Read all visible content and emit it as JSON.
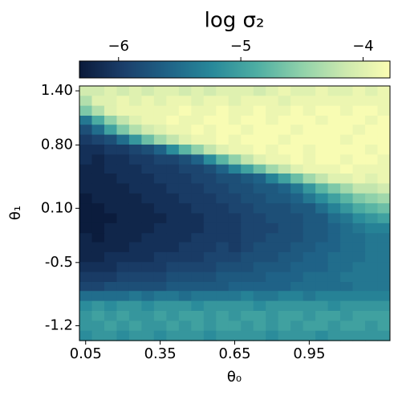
{
  "chart_data": {
    "type": "heatmap",
    "title": "log σ₂",
    "x_label": "θ₀",
    "y_label": "θ₁",
    "x": [
      0.05,
      0.1,
      0.15,
      0.2,
      0.25,
      0.3,
      0.35,
      0.4,
      0.45,
      0.5,
      0.55,
      0.6,
      0.65,
      0.7,
      0.75,
      0.8,
      0.85,
      0.9,
      0.95,
      1.0,
      1.05,
      1.1,
      1.15,
      1.2,
      1.25
    ],
    "y": [
      1.4,
      1.29,
      1.18,
      1.07,
      0.97,
      0.86,
      0.75,
      0.64,
      0.53,
      0.43,
      0.32,
      0.21,
      0.1,
      -0.01,
      -0.12,
      -0.23,
      -0.33,
      -0.44,
      -0.55,
      -0.66,
      -0.77,
      -0.87,
      -0.98,
      -1.09,
      -1.2,
      -1.31
    ],
    "xlim": [
      0.025,
      1.275
    ],
    "ylim": [
      1.454,
      -1.364
    ],
    "xticks": [
      0.05,
      0.35,
      0.65,
      0.95
    ],
    "yticks": [
      {
        "value": 1.4,
        "label": "1.40"
      },
      {
        "value": 0.8,
        "label": "0.80"
      },
      {
        "value": 0.1,
        "label": "0.10"
      },
      -0.5,
      -1.2
    ],
    "clim": [
      -6.32,
      -3.78
    ],
    "cticks": [
      {
        "value": -6,
        "label": "−6"
      },
      {
        "value": -5,
        "label": "−5"
      },
      {
        "value": -4,
        "label": "−4"
      }
    ],
    "colormap": [
      "#0a1a3a",
      "#1b3f6b",
      "#1f6387",
      "#28899a",
      "#4eaea3",
      "#8fd1aa",
      "#cde9ae",
      "#fbfdb3"
    ],
    "values": [
      [
        -4.1,
        -4.1,
        -4.0,
        -4.1,
        -4.0,
        -4.1,
        -4.0,
        -4.0,
        -4.1,
        -4.0,
        -4.1,
        -4.0,
        -4.0,
        -4.0,
        -4.1,
        -4.0,
        -3.9,
        -4.0,
        -4.0,
        -3.9,
        -4.0,
        -4.0,
        -3.9,
        -4.0,
        -3.9
      ],
      [
        -4.3,
        -4.0,
        -4.0,
        -3.9,
        -4.0,
        -3.9,
        -4.0,
        -3.9,
        -3.9,
        -4.0,
        -3.9,
        -3.9,
        -4.0,
        -3.9,
        -3.9,
        -3.9,
        -4.0,
        -3.9,
        -3.9,
        -3.9,
        -3.9,
        -3.9,
        -3.9,
        -3.9,
        -3.9
      ],
      [
        -4.6,
        -4.3,
        -4.0,
        -3.9,
        -3.9,
        -3.9,
        -3.9,
        -3.9,
        -3.8,
        -3.9,
        -3.9,
        -3.8,
        -3.9,
        -3.9,
        -3.8,
        -3.9,
        -3.9,
        -3.8,
        -3.9,
        -3.8,
        -3.8,
        -3.9,
        -3.8,
        -3.8,
        -3.9
      ],
      [
        -5.4,
        -4.9,
        -4.5,
        -4.2,
        -4.0,
        -3.9,
        -3.9,
        -3.8,
        -3.9,
        -3.9,
        -3.8,
        -3.8,
        -3.9,
        -3.8,
        -3.8,
        -3.9,
        -3.8,
        -3.8,
        -3.8,
        -3.9,
        -3.8,
        -3.8,
        -3.8,
        -3.9,
        -3.8
      ],
      [
        -5.8,
        -5.5,
        -5.0,
        -4.6,
        -4.3,
        -4.1,
        -4.0,
        -3.9,
        -3.9,
        -3.8,
        -3.9,
        -3.8,
        -3.8,
        -3.9,
        -3.8,
        -3.8,
        -3.8,
        -3.9,
        -3.8,
        -3.8,
        -3.8,
        -3.8,
        -3.9,
        -3.8,
        -3.8
      ],
      [
        -6.0,
        -5.9,
        -5.8,
        -5.5,
        -5.1,
        -4.7,
        -4.4,
        -4.2,
        -4.0,
        -3.9,
        -3.9,
        -3.8,
        -3.9,
        -3.8,
        -3.8,
        -3.8,
        -3.9,
        -3.8,
        -3.8,
        -3.8,
        -3.8,
        -3.9,
        -3.8,
        -3.8,
        -3.8
      ],
      [
        -6.1,
        -6.1,
        -6.0,
        -6.0,
        -5.9,
        -5.8,
        -5.6,
        -5.2,
        -4.8,
        -4.5,
        -4.2,
        -4.0,
        -3.9,
        -3.9,
        -3.8,
        -3.9,
        -3.8,
        -3.8,
        -3.9,
        -3.8,
        -3.8,
        -3.8,
        -3.8,
        -3.9,
        -3.8
      ],
      [
        -6.1,
        -6.2,
        -6.1,
        -6.1,
        -6.0,
        -6.0,
        -5.9,
        -5.9,
        -5.8,
        -5.6,
        -5.2,
        -4.8,
        -4.5,
        -4.2,
        -4.0,
        -3.9,
        -3.9,
        -3.8,
        -3.9,
        -3.8,
        -3.8,
        -3.9,
        -3.8,
        -3.8,
        -3.9
      ],
      [
        -6.2,
        -6.2,
        -6.1,
        -6.1,
        -6.1,
        -6.0,
        -6.0,
        -6.0,
        -5.9,
        -5.9,
        -5.8,
        -5.6,
        -5.3,
        -5.0,
        -4.7,
        -4.4,
        -4.2,
        -4.0,
        -3.9,
        -3.9,
        -3.9,
        -3.8,
        -3.9,
        -3.9,
        -3.9
      ],
      [
        -6.2,
        -6.2,
        -6.2,
        -6.1,
        -6.1,
        -6.1,
        -6.0,
        -6.0,
        -6.0,
        -5.9,
        -5.9,
        -5.8,
        -5.8,
        -5.7,
        -5.6,
        -5.3,
        -5.0,
        -4.7,
        -4.4,
        -4.2,
        -4.0,
        -4.0,
        -3.9,
        -4.0,
        -3.9
      ],
      [
        -6.2,
        -6.2,
        -6.2,
        -6.2,
        -6.1,
        -6.1,
        -6.1,
        -6.0,
        -6.0,
        -6.0,
        -5.9,
        -5.9,
        -5.8,
        -5.8,
        -5.7,
        -5.7,
        -5.6,
        -5.4,
        -5.1,
        -4.8,
        -4.6,
        -4.4,
        -4.2,
        -4.2,
        -4.1
      ],
      [
        -6.3,
        -6.2,
        -6.2,
        -6.2,
        -6.2,
        -6.1,
        -6.1,
        -6.1,
        -6.0,
        -6.0,
        -6.0,
        -5.9,
        -5.9,
        -5.8,
        -5.8,
        -5.7,
        -5.7,
        -5.6,
        -5.4,
        -5.2,
        -5.0,
        -4.8,
        -4.6,
        -4.5,
        -4.4
      ],
      [
        -6.3,
        -6.3,
        -6.2,
        -6.2,
        -6.2,
        -6.2,
        -6.1,
        -6.1,
        -6.1,
        -6.0,
        -6.0,
        -6.0,
        -5.9,
        -5.9,
        -5.8,
        -5.8,
        -5.8,
        -5.7,
        -5.7,
        -5.5,
        -5.3,
        -5.1,
        -4.9,
        -4.8,
        -4.7
      ],
      [
        -6.3,
        -6.3,
        -6.3,
        -6.2,
        -6.2,
        -6.2,
        -6.2,
        -6.1,
        -6.1,
        -6.1,
        -6.0,
        -6.0,
        -6.0,
        -5.9,
        -5.9,
        -5.8,
        -5.8,
        -5.8,
        -5.7,
        -5.7,
        -5.5,
        -5.4,
        -5.2,
        -5.1,
        -5.0
      ],
      [
        -6.3,
        -6.3,
        -6.2,
        -6.2,
        -6.2,
        -6.2,
        -6.1,
        -6.1,
        -6.1,
        -6.1,
        -6.0,
        -6.0,
        -6.0,
        -5.9,
        -5.9,
        -5.9,
        -5.8,
        -5.8,
        -5.7,
        -5.7,
        -5.6,
        -5.5,
        -5.4,
        -5.3,
        -5.3
      ],
      [
        -6.2,
        -6.3,
        -6.2,
        -6.2,
        -6.2,
        -6.1,
        -6.1,
        -6.1,
        -6.1,
        -6.0,
        -6.0,
        -6.0,
        -6.0,
        -5.9,
        -5.9,
        -5.8,
        -5.8,
        -5.8,
        -5.7,
        -5.7,
        -5.6,
        -5.5,
        -5.5,
        -5.4,
        -5.4
      ],
      [
        -6.2,
        -6.2,
        -6.2,
        -6.2,
        -6.1,
        -6.1,
        -6.1,
        -6.1,
        -6.0,
        -6.0,
        -6.0,
        -5.9,
        -6.0,
        -5.9,
        -5.8,
        -5.8,
        -5.8,
        -5.7,
        -5.7,
        -5.6,
        -5.6,
        -5.5,
        -5.5,
        -5.4,
        -5.4
      ],
      [
        -6.2,
        -6.2,
        -6.1,
        -6.1,
        -6.1,
        -6.1,
        -6.0,
        -6.0,
        -6.0,
        -6.0,
        -5.9,
        -5.9,
        -5.9,
        -5.8,
        -5.8,
        -5.8,
        -5.7,
        -5.7,
        -5.6,
        -5.6,
        -5.5,
        -5.5,
        -5.5,
        -5.4,
        -5.4
      ],
      [
        -6.1,
        -6.1,
        -6.1,
        -6.0,
        -6.0,
        -6.0,
        -6.0,
        -5.9,
        -5.9,
        -5.9,
        -5.9,
        -5.8,
        -5.8,
        -5.8,
        -5.7,
        -5.7,
        -5.7,
        -5.6,
        -5.6,
        -5.6,
        -5.5,
        -5.5,
        -5.4,
        -5.4,
        -5.4
      ],
      [
        -6.0,
        -6.0,
        -6.0,
        -5.9,
        -5.9,
        -5.9,
        -5.9,
        -5.8,
        -5.8,
        -5.8,
        -5.8,
        -5.7,
        -5.7,
        -5.7,
        -5.7,
        -5.6,
        -5.6,
        -5.6,
        -5.5,
        -5.5,
        -5.5,
        -5.4,
        -5.4,
        -5.4,
        -5.4
      ],
      [
        -5.9,
        -5.9,
        -5.8,
        -5.8,
        -5.8,
        -5.8,
        -5.8,
        -5.7,
        -5.7,
        -5.7,
        -5.7,
        -5.7,
        -5.6,
        -5.6,
        -5.6,
        -5.6,
        -5.6,
        -5.5,
        -5.5,
        -5.5,
        -5.5,
        -5.5,
        -5.4,
        -5.4,
        -5.4
      ],
      [
        -5.5,
        -5.5,
        -5.5,
        -5.5,
        -5.4,
        -5.5,
        -5.4,
        -5.4,
        -5.5,
        -5.4,
        -5.4,
        -5.4,
        -5.4,
        -5.3,
        -5.4,
        -5.4,
        -5.3,
        -5.3,
        -5.4,
        -5.3,
        -5.3,
        -5.3,
        -5.3,
        -5.3,
        -5.3
      ],
      [
        -5.2,
        -5.1,
        -5.2,
        -5.1,
        -5.1,
        -5.2,
        -5.1,
        -5.1,
        -5.1,
        -5.2,
        -5.1,
        -5.1,
        -5.1,
        -5.1,
        -5.2,
        -5.1,
        -5.1,
        -5.1,
        -5.1,
        -5.1,
        -5.2,
        -5.1,
        -5.1,
        -5.1,
        -5.1
      ],
      [
        -5.1,
        -5.0,
        -5.1,
        -5.0,
        -5.1,
        -5.1,
        -5.0,
        -5.1,
        -5.0,
        -5.0,
        -5.1,
        -5.0,
        -5.1,
        -5.0,
        -5.0,
        -5.1,
        -5.0,
        -5.0,
        -5.1,
        -5.0,
        -5.0,
        -5.1,
        -5.0,
        -5.0,
        -5.0
      ],
      [
        -5.1,
        -5.1,
        -5.0,
        -5.1,
        -5.0,
        -5.1,
        -5.1,
        -5.0,
        -5.1,
        -5.0,
        -5.1,
        -5.0,
        -5.0,
        -5.1,
        -5.0,
        -5.1,
        -5.0,
        -5.1,
        -5.0,
        -5.0,
        -5.1,
        -5.0,
        -5.0,
        -5.1,
        -5.0
      ],
      [
        -5.2,
        -5.1,
        -5.1,
        -5.2,
        -5.1,
        -5.1,
        -5.2,
        -5.1,
        -5.1,
        -5.1,
        -5.2,
        -5.1,
        -5.1,
        -5.1,
        -5.1,
        -5.2,
        -5.1,
        -5.1,
        -5.1,
        -5.2,
        -5.1,
        -5.1,
        -5.1,
        -5.1,
        -5.1
      ]
    ]
  }
}
